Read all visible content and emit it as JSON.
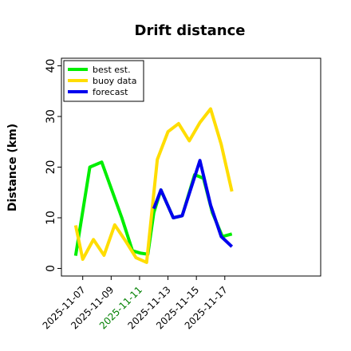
{
  "chart_data": {
    "type": "line",
    "title": "Drift distance",
    "xlabel": "",
    "ylabel": "Distance (km)",
    "ylim": [
      -1.5,
      41.5
    ],
    "yticks": [
      0,
      10,
      20,
      30,
      40
    ],
    "xlim": [
      "2025-11-05T12:00",
      "2025-11-23T18:00"
    ],
    "xticks": [
      {
        "date": "2025-11-07",
        "label": "2025-11-07",
        "color": "#000000"
      },
      {
        "date": "2025-11-09",
        "label": "2025-11-09",
        "color": "#000000"
      },
      {
        "date": "2025-11-11",
        "label": "2025-11-11",
        "color": "#008000"
      },
      {
        "date": "2025-11-13",
        "label": "2025-11-13",
        "color": "#000000"
      },
      {
        "date": "2025-11-15",
        "label": "2025-11-15",
        "color": "#000000"
      },
      {
        "date": "2025-11-17",
        "label": "2025-11-17",
        "color": "#000000"
      }
    ],
    "grid": false,
    "legend_position": "top-left",
    "series": [
      {
        "name": "best est.",
        "color": "#00ee00",
        "points": [
          [
            "2025-11-06T12:00",
            2.5
          ],
          [
            "2025-11-07T12:00",
            20.0
          ],
          [
            "2025-11-08T08:00",
            21.0
          ],
          [
            "2025-11-09T18:00",
            10.0
          ],
          [
            "2025-11-10T12:00",
            3.5
          ],
          [
            "2025-11-11T02:00",
            3.0
          ],
          [
            "2025-11-11T14:00",
            2.8
          ],
          [
            "2025-11-12T00:00",
            11.0
          ],
          [
            "2025-11-12T12:00",
            15.5
          ],
          [
            "2025-11-13T09:00",
            10.0
          ],
          [
            "2025-11-14T00:00",
            10.4
          ],
          [
            "2025-11-14T21:00",
            18.5
          ],
          [
            "2025-11-15T12:00",
            17.8
          ],
          [
            "2025-11-16T03:00",
            11.0
          ],
          [
            "2025-11-16T20:00",
            6.3
          ],
          [
            "2025-11-17T12:00",
            6.8
          ]
        ]
      },
      {
        "name": "buoy data",
        "color": "#ffdd00",
        "points": [
          [
            "2025-11-06T12:00",
            8.5
          ],
          [
            "2025-11-07T00:00",
            1.8
          ],
          [
            "2025-11-07T18:00",
            5.7
          ],
          [
            "2025-11-08T12:00",
            2.6
          ],
          [
            "2025-11-09T06:00",
            8.6
          ],
          [
            "2025-11-10T00:00",
            5.5
          ],
          [
            "2025-11-10T18:00",
            2.1
          ],
          [
            "2025-11-11T12:00",
            1.2
          ],
          [
            "2025-11-12T06:00",
            21.5
          ],
          [
            "2025-11-13T00:00",
            27.0
          ],
          [
            "2025-11-13T18:00",
            28.6
          ],
          [
            "2025-11-14T12:00",
            25.2
          ],
          [
            "2025-11-15T06:00",
            28.8
          ],
          [
            "2025-11-16T00:00",
            31.5
          ],
          [
            "2025-11-16T18:00",
            24.5
          ],
          [
            "2025-11-17T12:00",
            15.2
          ]
        ]
      },
      {
        "name": "forecast",
        "color": "#0000ee",
        "points": [
          [
            "2025-11-12T00:00",
            11.8
          ],
          [
            "2025-11-12T12:00",
            15.5
          ],
          [
            "2025-11-13T09:00",
            10.0
          ],
          [
            "2025-11-14T00:00",
            10.4
          ],
          [
            "2025-11-15T06:00",
            21.3
          ],
          [
            "2025-11-16T00:00",
            12.5
          ],
          [
            "2025-11-16T18:00",
            6.3
          ],
          [
            "2025-11-17T12:00",
            4.3
          ]
        ]
      }
    ]
  }
}
